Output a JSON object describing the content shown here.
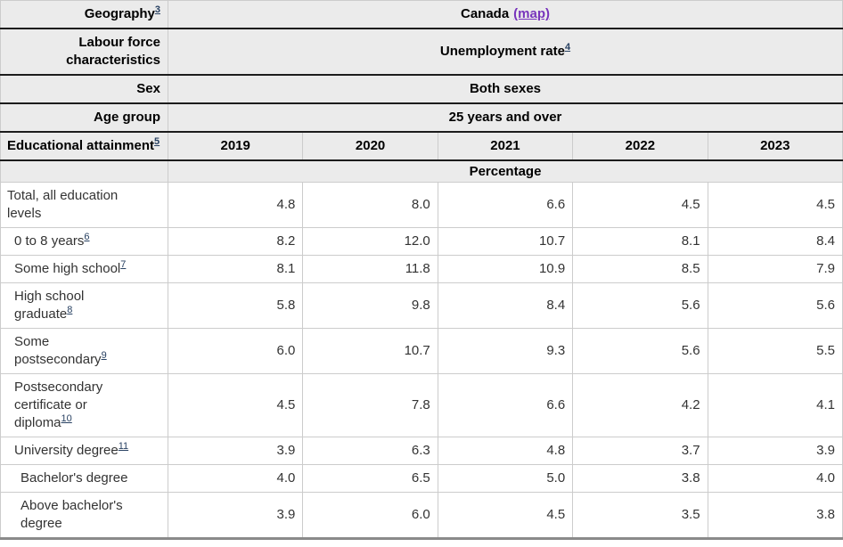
{
  "colors": {
    "header_bg": "#ebebeb",
    "border_dark": "#1c1c1c",
    "border_light": "#cccccc",
    "table_bottom_border": "#8a8a8a",
    "footnote_link": "#284162",
    "map_link": "#7834bc"
  },
  "table": {
    "header": {
      "geography_label": "Geography",
      "geography_footnote": "3",
      "geography_value": "Canada",
      "map_link_label": "(map)",
      "characteristics_label": "Labour force characteristics",
      "characteristics_value": "Unemployment rate",
      "characteristics_footnote": "4",
      "sex_label": "Sex",
      "sex_value": "Both sexes",
      "age_label": "Age group",
      "age_value": "25 years and over",
      "education_label": "Educational attainment",
      "education_footnote": "5",
      "years": [
        "2019",
        "2020",
        "2021",
        "2022",
        "2023"
      ],
      "unit_label": "Percentage"
    },
    "rows": [
      {
        "label": "Total, all education levels",
        "footnote": "",
        "indent": 0,
        "values": [
          "4.8",
          "8.0",
          "6.6",
          "4.5",
          "4.5"
        ]
      },
      {
        "label": "0 to 8 years",
        "footnote": "6",
        "indent": 1,
        "values": [
          "8.2",
          "12.0",
          "10.7",
          "8.1",
          "8.4"
        ]
      },
      {
        "label": "Some high school",
        "footnote": "7",
        "indent": 1,
        "values": [
          "8.1",
          "11.8",
          "10.9",
          "8.5",
          "7.9"
        ]
      },
      {
        "label": "High school graduate",
        "footnote": "8",
        "indent": 1,
        "values": [
          "5.8",
          "9.8",
          "8.4",
          "5.6",
          "5.6"
        ]
      },
      {
        "label": "Some postsecondary",
        "footnote": "9",
        "indent": 1,
        "values": [
          "6.0",
          "10.7",
          "9.3",
          "5.6",
          "5.5"
        ]
      },
      {
        "label": "Postsecondary certificate or diploma",
        "footnote": "10",
        "indent": 1,
        "values": [
          "4.5",
          "7.8",
          "6.6",
          "4.2",
          "4.1"
        ]
      },
      {
        "label": "University degree",
        "footnote": "11",
        "indent": 1,
        "values": [
          "3.9",
          "6.3",
          "4.8",
          "3.7",
          "3.9"
        ]
      },
      {
        "label": "Bachelor's degree",
        "footnote": "",
        "indent": 2,
        "values": [
          "4.0",
          "6.5",
          "5.0",
          "3.8",
          "4.0"
        ]
      },
      {
        "label": "Above bachelor's degree",
        "footnote": "",
        "indent": 2,
        "values": [
          "3.9",
          "6.0",
          "4.5",
          "3.5",
          "3.8"
        ]
      }
    ]
  },
  "chart_data": {
    "type": "table",
    "title": "Unemployment rate, Canada, both sexes, 25 years and over, by educational attainment",
    "geography": "Canada",
    "labour_force_characteristic": "Unemployment rate",
    "sex": "Both sexes",
    "age_group": "25 years and over",
    "unit": "Percentage",
    "categories": [
      "2019",
      "2020",
      "2021",
      "2022",
      "2023"
    ],
    "series": [
      {
        "name": "Total, all education levels",
        "values": [
          4.8,
          8.0,
          6.6,
          4.5,
          4.5
        ]
      },
      {
        "name": "0 to 8 years",
        "values": [
          8.2,
          12.0,
          10.7,
          8.1,
          8.4
        ]
      },
      {
        "name": "Some high school",
        "values": [
          8.1,
          11.8,
          10.9,
          8.5,
          7.9
        ]
      },
      {
        "name": "High school graduate",
        "values": [
          5.8,
          9.8,
          8.4,
          5.6,
          5.6
        ]
      },
      {
        "name": "Some postsecondary",
        "values": [
          6.0,
          10.7,
          9.3,
          5.6,
          5.5
        ]
      },
      {
        "name": "Postsecondary certificate or diploma",
        "values": [
          4.5,
          7.8,
          6.6,
          4.2,
          4.1
        ]
      },
      {
        "name": "University degree",
        "values": [
          3.9,
          6.3,
          4.8,
          3.7,
          3.9
        ]
      },
      {
        "name": "Bachelor's degree",
        "values": [
          4.0,
          6.5,
          5.0,
          3.8,
          4.0
        ]
      },
      {
        "name": "Above bachelor's degree",
        "values": [
          3.9,
          6.0,
          4.5,
          3.5,
          3.8
        ]
      }
    ]
  }
}
